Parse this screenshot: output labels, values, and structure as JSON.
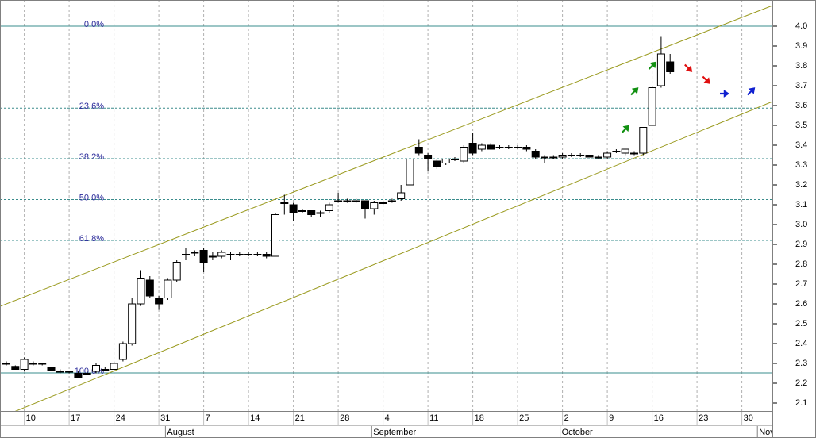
{
  "chart_data": {
    "type": "candlestick",
    "categories": [
      "Jul 6",
      "Jul 7",
      "Jul 10",
      "Jul 11",
      "Jul 12",
      "Jul 13",
      "Jul 14",
      "Jul 17",
      "Jul 18",
      "Jul 19",
      "Jul 20",
      "Jul 21",
      "Jul 24",
      "Jul 25",
      "Jul 26",
      "Jul 27",
      "Jul 28",
      "Jul 31",
      "Aug 1",
      "Aug 2",
      "Aug 3",
      "Aug 4",
      "Aug 7",
      "Aug 8",
      "Aug 9",
      "Aug 10",
      "Aug 11",
      "Aug 14",
      "Aug 15",
      "Aug 16",
      "Aug 17",
      "Aug 18",
      "Aug 21",
      "Aug 22",
      "Aug 23",
      "Aug 24",
      "Aug 25",
      "Aug 28",
      "Aug 29",
      "Aug 30",
      "Aug 31",
      "Sep 1",
      "Sep 4",
      "Sep 5",
      "Sep 6",
      "Sep 7",
      "Sep 8",
      "Sep 11",
      "Sep 12",
      "Sep 13",
      "Sep 14",
      "Sep 15",
      "Sep 18",
      "Sep 19",
      "Sep 20",
      "Sep 21",
      "Sep 22",
      "Sep 25",
      "Sep 26",
      "Sep 27",
      "Sep 28",
      "Sep 29",
      "Oct 2",
      "Oct 3",
      "Oct 4",
      "Oct 5",
      "Oct 6",
      "Oct 9",
      "Oct 10",
      "Oct 11",
      "Oct 12",
      "Oct 13",
      "Oct 16",
      "Oct 17",
      "Oct 18",
      "Oct 19",
      "Oct 20",
      "Oct 23",
      "Oct 24",
      "Oct 25",
      "Oct 26",
      "Oct 27",
      "Oct 30",
      "Oct 31",
      "Nov 1"
    ],
    "open": [
      2.3,
      2.285,
      2.27,
      2.3,
      2.3,
      2.28,
      2.26,
      2.26,
      2.25,
      2.25,
      2.26,
      2.27,
      2.27,
      2.32,
      2.4,
      2.6,
      2.72,
      2.63,
      2.63,
      2.72,
      2.85,
      2.86,
      2.87,
      2.84,
      2.84,
      2.85,
      2.85,
      2.85,
      2.85,
      2.85,
      2.84,
      3.11,
      3.1,
      3.07,
      3.07,
      3.06,
      3.07,
      3.12,
      3.12,
      3.12,
      3.12,
      3.08,
      3.11,
      3.12,
      3.13,
      3.2,
      3.39,
      3.35,
      3.32,
      3.31,
      3.33,
      3.32,
      3.41,
      3.38,
      3.4,
      3.39,
      3.39,
      3.39,
      3.39,
      3.37,
      3.34,
      3.34,
      3.34,
      3.35,
      3.35,
      3.35,
      3.34,
      3.34,
      3.37,
      3.36,
      3.36,
      3.36,
      3.5,
      3.7,
      3.82,
      null,
      null,
      null,
      null,
      null,
      null,
      null,
      null,
      null,
      null
    ],
    "high": [
      2.31,
      2.29,
      2.33,
      2.31,
      2.3,
      2.28,
      2.27,
      2.26,
      2.26,
      2.26,
      2.3,
      2.28,
      2.31,
      2.41,
      2.63,
      2.77,
      2.74,
      2.64,
      2.73,
      2.82,
      2.88,
      2.87,
      2.88,
      2.86,
      2.87,
      2.86,
      2.86,
      2.86,
      2.86,
      2.86,
      3.06,
      3.15,
      3.11,
      3.08,
      3.07,
      3.07,
      3.11,
      3.16,
      3.13,
      3.13,
      3.12,
      3.12,
      3.12,
      3.13,
      3.2,
      3.34,
      3.43,
      3.36,
      3.33,
      3.33,
      3.34,
      3.4,
      3.46,
      3.41,
      3.41,
      3.4,
      3.4,
      3.4,
      3.4,
      3.38,
      3.35,
      3.35,
      3.36,
      3.36,
      3.36,
      3.35,
      3.35,
      3.37,
      3.38,
      3.38,
      3.37,
      3.49,
      3.7,
      3.95,
      3.86,
      null,
      null,
      null,
      null,
      null,
      null,
      null,
      null,
      null,
      null
    ],
    "low": [
      2.29,
      2.27,
      2.26,
      2.29,
      2.29,
      2.265,
      2.25,
      2.25,
      2.23,
      2.24,
      2.25,
      2.26,
      2.26,
      2.31,
      2.39,
      2.59,
      2.63,
      2.57,
      2.62,
      2.71,
      2.82,
      2.84,
      2.76,
      2.82,
      2.83,
      2.82,
      2.84,
      2.84,
      2.84,
      2.83,
      2.84,
      3.05,
      3.02,
      3.06,
      3.04,
      3.04,
      3.06,
      3.11,
      3.11,
      3.11,
      3.03,
      3.05,
      3.1,
      3.11,
      3.12,
      3.18,
      3.35,
      3.27,
      3.28,
      3.3,
      3.32,
      3.31,
      3.35,
      3.37,
      3.38,
      3.38,
      3.38,
      3.38,
      3.37,
      3.33,
      3.31,
      3.33,
      3.33,
      3.34,
      3.34,
      3.34,
      3.33,
      3.33,
      3.36,
      3.35,
      3.35,
      3.35,
      3.5,
      3.69,
      3.76,
      null,
      null,
      null,
      null,
      null,
      null,
      null,
      null,
      null,
      null
    ],
    "close": [
      2.3,
      2.27,
      2.32,
      2.3,
      2.3,
      2.265,
      2.26,
      2.26,
      2.23,
      2.25,
      2.29,
      2.27,
      2.3,
      2.4,
      2.6,
      2.73,
      2.64,
      2.6,
      2.72,
      2.81,
      2.85,
      2.86,
      2.81,
      2.84,
      2.86,
      2.85,
      2.85,
      2.85,
      2.85,
      2.84,
      3.05,
      3.11,
      3.06,
      3.07,
      3.05,
      3.06,
      3.1,
      3.12,
      3.12,
      3.12,
      3.08,
      3.11,
      3.11,
      3.12,
      3.16,
      3.33,
      3.36,
      3.33,
      3.29,
      3.33,
      3.33,
      3.39,
      3.36,
      3.4,
      3.38,
      3.39,
      3.39,
      3.39,
      3.38,
      3.34,
      3.34,
      3.34,
      3.35,
      3.35,
      3.35,
      3.34,
      3.34,
      3.36,
      3.37,
      3.38,
      3.36,
      3.49,
      3.69,
      3.86,
      3.77,
      null,
      null,
      null,
      null,
      null,
      null,
      null,
      null,
      null,
      null
    ],
    "ylim": [
      2.06,
      4.132
    ],
    "yticks": [
      2.1,
      2.2,
      2.3,
      2.4,
      2.5,
      2.6,
      2.7,
      2.8,
      2.9,
      {
        "value": 3,
        "label": "3.0"
      },
      3.1,
      3.2,
      3.3,
      3.4,
      3.5,
      3.6,
      3.7,
      3.8,
      3.9,
      {
        "value": 4,
        "label": "4.0"
      }
    ],
    "xticks": [
      {
        "value": "Jul 10",
        "label": "10"
      },
      {
        "value": "Jul 17",
        "label": "17"
      },
      {
        "value": "Jul 24",
        "label": "24"
      },
      {
        "value": "Jul 31",
        "label": "31"
      },
      {
        "value": "Aug 7",
        "label": "7"
      },
      {
        "value": "Aug 14",
        "label": "14"
      },
      {
        "value": "Aug 21",
        "label": "21"
      },
      {
        "value": "Aug 28",
        "label": "28"
      },
      {
        "value": "Sep 4",
        "label": "4"
      },
      {
        "value": "Sep 11",
        "label": "11"
      },
      {
        "value": "Sep 18",
        "label": "18"
      },
      {
        "value": "Sep 25",
        "label": "25"
      },
      {
        "value": "Oct 2",
        "label": "2"
      },
      {
        "value": "Oct 9",
        "label": "9"
      },
      {
        "value": "Oct 16",
        "label": "16"
      },
      {
        "value": "Oct 23",
        "label": "23"
      },
      {
        "value": "Oct 30",
        "label": "30"
      }
    ],
    "month_ticks": [
      {
        "value": "Aug 1",
        "label": "August"
      },
      {
        "value": "Sep 1",
        "label": "September"
      },
      {
        "value": "Oct 2",
        "label": "October"
      },
      {
        "value": "Nov 1",
        "label": "November"
      }
    ],
    "levels": [
      {
        "label": "0.0%",
        "value": 4.0,
        "style": "solid"
      },
      {
        "label": "23.6%",
        "value": 3.587,
        "style": "dashed"
      },
      {
        "label": "38.2%",
        "value": 3.332,
        "style": "dashed"
      },
      {
        "label": "50.0%",
        "value": 3.126,
        "style": "dashed"
      },
      {
        "label": "61.8%",
        "value": 2.92,
        "style": "dashed"
      },
      {
        "label": "100.0%",
        "value": 2.252,
        "style": "solid"
      }
    ],
    "level_color": "#3a8c8c",
    "channel_color": "#9a9a1e",
    "channel": [
      {
        "x": [
          "Jul 6",
          "Nov 1"
        ],
        "values": [
          2.6,
          4.079
        ]
      },
      {
        "x": [
          "Jul 6",
          "Nov 1"
        ],
        "values": [
          2.04,
          3.594
        ]
      }
    ],
    "signals": [
      {
        "x": "Oct 11",
        "value": 3.48,
        "direction": "up",
        "color": "#119011"
      },
      {
        "x": "Oct 12",
        "value": 3.67,
        "direction": "up",
        "color": "#119011"
      },
      {
        "x": "Oct 16",
        "value": 3.8,
        "direction": "up",
        "color": "#119011"
      },
      {
        "x": "Oct 20",
        "value": 3.79,
        "direction": "down",
        "color": "#e01010"
      },
      {
        "x": "Oct 24",
        "value": 3.73,
        "direction": "down",
        "color": "#e01010"
      },
      {
        "x": "Oct 26",
        "value": 3.66,
        "direction": "flat",
        "color": "#1020d0"
      },
      {
        "x": "Oct 31",
        "value": 3.67,
        "direction": "up",
        "color": "#1020d0"
      }
    ],
    "grid": true
  }
}
